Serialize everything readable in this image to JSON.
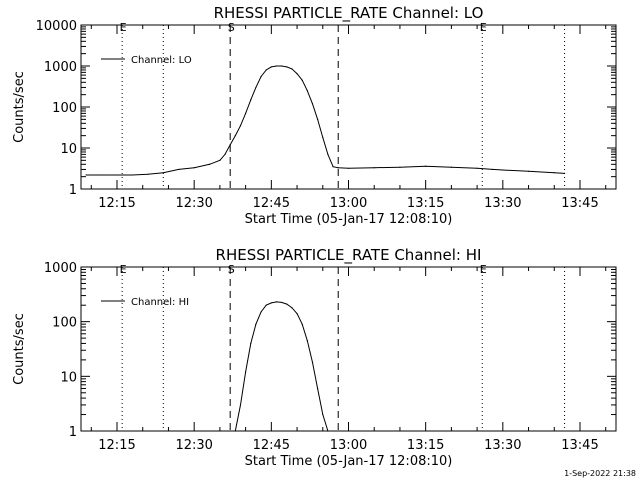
{
  "footer": {
    "timestamp": "1-Sep-2022 21:38"
  },
  "chart_data": [
    {
      "type": "line",
      "title": "RHESSI PARTICLE_RATE Channel: LO",
      "xlabel": "Start Time (05-Jan-17 12:08:10)",
      "ylabel": "Counts/sec",
      "y_scale": "log",
      "ylim": [
        1,
        10000
      ],
      "y_ticks": [
        {
          "value": 1,
          "label": "1"
        },
        {
          "value": 10,
          "label": "10"
        },
        {
          "value": 100,
          "label": "100"
        },
        {
          "value": 1000,
          "label": "1000"
        },
        {
          "value": 10000,
          "label": "10000"
        }
      ],
      "xlim": [
        "12:08",
        "13:52"
      ],
      "x_ticks": [
        "12:15",
        "12:30",
        "12:45",
        "13:00",
        "13:15",
        "13:30",
        "13:45"
      ],
      "legend": {
        "label": "Channel: LO",
        "placement": "top-left"
      },
      "vertical_lines": [
        {
          "time": "12:16",
          "style": "dotted",
          "label": "E"
        },
        {
          "time": "12:24",
          "style": "dotted",
          "label": ""
        },
        {
          "time": "12:37",
          "style": "dashed",
          "label": "S"
        },
        {
          "time": "12:58",
          "style": "dashed",
          "label": ""
        },
        {
          "time": "13:26",
          "style": "dotted",
          "label": "E"
        },
        {
          "time": "13:42",
          "style": "dotted",
          "label": ""
        }
      ],
      "series": [
        {
          "name": "Channel: LO",
          "points": [
            [
              "12:09",
              2.2
            ],
            [
              "12:12",
              2.2
            ],
            [
              "12:15",
              2.2
            ],
            [
              "12:18",
              2.2
            ],
            [
              "12:21",
              2.3
            ],
            [
              "12:24",
              2.5
            ],
            [
              "12:27",
              3.0
            ],
            [
              "12:30",
              3.3
            ],
            [
              "12:33",
              4.0
            ],
            [
              "12:35",
              5.0
            ],
            [
              "12:36",
              7
            ],
            [
              "12:37",
              12
            ],
            [
              "12:38",
              20
            ],
            [
              "12:39",
              35
            ],
            [
              "12:40",
              70
            ],
            [
              "12:41",
              150
            ],
            [
              "12:42",
              300
            ],
            [
              "12:43",
              550
            ],
            [
              "12:44",
              800
            ],
            [
              "12:45",
              950
            ],
            [
              "12:46",
              1000
            ],
            [
              "12:47",
              1000
            ],
            [
              "12:48",
              950
            ],
            [
              "12:49",
              850
            ],
            [
              "12:50",
              650
            ],
            [
              "12:51",
              450
            ],
            [
              "12:52",
              250
            ],
            [
              "12:53",
              120
            ],
            [
              "12:54",
              50
            ],
            [
              "12:55",
              18
            ],
            [
              "12:56",
              7
            ],
            [
              "12:57",
              3.5
            ],
            [
              "12:58",
              3.3
            ],
            [
              "13:00",
              3.2
            ],
            [
              "13:05",
              3.3
            ],
            [
              "13:10",
              3.4
            ],
            [
              "13:15",
              3.6
            ],
            [
              "13:20",
              3.4
            ],
            [
              "13:25",
              3.2
            ],
            [
              "13:28",
              3.0
            ],
            [
              "13:30",
              2.9
            ],
            [
              "13:35",
              2.7
            ],
            [
              "13:40",
              2.5
            ],
            [
              "13:42",
              2.4
            ]
          ]
        }
      ]
    },
    {
      "type": "line",
      "title": "RHESSI PARTICLE_RATE Channel: HI",
      "xlabel": "Start Time (05-Jan-17 12:08:10)",
      "ylabel": "Counts/sec",
      "y_scale": "log",
      "ylim": [
        1,
        1000
      ],
      "y_ticks": [
        {
          "value": 1,
          "label": "1"
        },
        {
          "value": 10,
          "label": "10"
        },
        {
          "value": 100,
          "label": "100"
        },
        {
          "value": 1000,
          "label": "1000"
        }
      ],
      "xlim": [
        "12:08",
        "13:52"
      ],
      "x_ticks": [
        "12:15",
        "12:30",
        "12:45",
        "13:00",
        "13:15",
        "13:30",
        "13:45"
      ],
      "legend": {
        "label": "Channel: HI",
        "placement": "top-left"
      },
      "vertical_lines": [
        {
          "time": "12:16",
          "style": "dotted",
          "label": "E"
        },
        {
          "time": "12:24",
          "style": "dotted",
          "label": ""
        },
        {
          "time": "12:37",
          "style": "dashed",
          "label": "S"
        },
        {
          "time": "12:58",
          "style": "dashed",
          "label": ""
        },
        {
          "time": "13:26",
          "style": "dotted",
          "label": "E"
        },
        {
          "time": "13:42",
          "style": "dotted",
          "label": ""
        }
      ],
      "series": [
        {
          "name": "Channel: HI",
          "points": [
            [
              "12:38",
              1.0
            ],
            [
              "12:39",
              3
            ],
            [
              "12:40",
              12
            ],
            [
              "12:41",
              40
            ],
            [
              "12:42",
              90
            ],
            [
              "12:43",
              150
            ],
            [
              "12:44",
              200
            ],
            [
              "12:45",
              220
            ],
            [
              "12:46",
              230
            ],
            [
              "12:47",
              225
            ],
            [
              "12:48",
              210
            ],
            [
              "12:49",
              180
            ],
            [
              "12:50",
              140
            ],
            [
              "12:51",
              90
            ],
            [
              "12:52",
              45
            ],
            [
              "12:53",
              18
            ],
            [
              "12:54",
              6
            ],
            [
              "12:55",
              2
            ],
            [
              "12:56",
              1.0
            ]
          ]
        }
      ]
    }
  ]
}
